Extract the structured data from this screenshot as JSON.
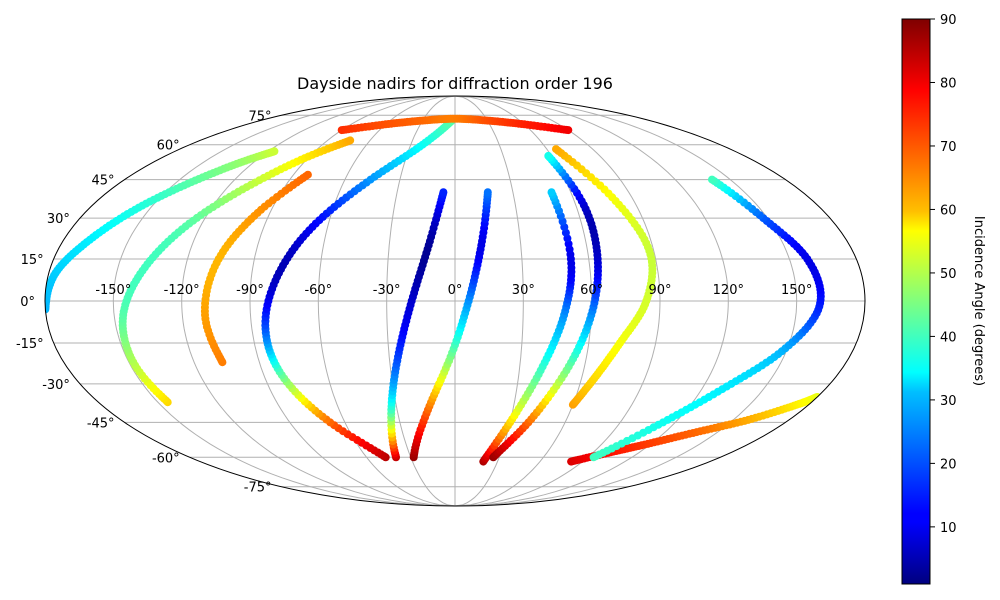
{
  "chart_data": {
    "type": "scatter",
    "projection": "mollweide",
    "title": "Dayside nadirs for diffraction order 196",
    "grid": true,
    "x_ticks": [
      "-150°",
      "-120°",
      "-90°",
      "-60°",
      "-30°",
      "0°",
      "30°",
      "60°",
      "90°",
      "120°",
      "150°"
    ],
    "y_ticks": [
      "-75°",
      "-60°",
      "-45°",
      "-30°",
      "-15°",
      "0°",
      "15°",
      "30°",
      "45°",
      "60°",
      "75°"
    ],
    "xlim": [
      -180,
      180
    ],
    "ylim": [
      -90,
      90
    ],
    "colorbar": {
      "label": "Incidence Angle (degrees)",
      "colormap": "jet",
      "range": [
        1,
        90
      ],
      "ticks": [
        "10",
        "20",
        "30",
        "40",
        "50",
        "60",
        "70",
        "80",
        "90"
      ]
    },
    "series": [
      {
        "track": 1,
        "lon": [
          -180,
          -177,
          -168,
          -156,
          -142,
          -128,
          -116
        ],
        "lat": [
          -3,
          10,
          22,
          34,
          44,
          52,
          57
        ],
        "incidence": [
          28,
          30,
          33,
          37,
          42,
          47,
          52
        ]
      },
      {
        "track": 2,
        "lon": [
          -145,
          -148,
          -146,
          -138,
          -126,
          -110,
          -92,
          -74
        ],
        "lat": [
          -37,
          -22,
          -5,
          12,
          28,
          42,
          54,
          62
        ],
        "incidence": [
          60,
          50,
          42,
          40,
          42,
          50,
          58,
          64
        ]
      },
      {
        "track": 3,
        "lon": [
          -107,
          -110,
          -106,
          -96,
          -82
        ],
        "lat": [
          -22,
          -5,
          15,
          32,
          47
        ],
        "incidence": [
          68,
          65,
          63,
          66,
          70
        ]
      },
      {
        "track": 4,
        "lon": [
          -47,
          -68,
          -81,
          -84,
          -78,
          -66,
          -46,
          -22,
          -3
        ],
        "lat": [
          -60,
          -45,
          -28,
          -10,
          10,
          28,
          45,
          60,
          72
        ],
        "incidence": [
          85,
          70,
          45,
          20,
          6,
          12,
          25,
          35,
          42
        ]
      },
      {
        "track": 5,
        "lon": [
          -40,
          -33,
          -26,
          -19,
          -12,
          -6
        ],
        "lat": [
          -60,
          -40,
          -20,
          0,
          20,
          40
        ],
        "incidence": [
          84,
          40,
          18,
          8,
          3,
          15
        ]
      },
      {
        "track": 6,
        "lon": [
          -28,
          -14,
          -2,
          6,
          12,
          17
        ],
        "lat": [
          -60,
          -40,
          -20,
          0,
          20,
          40
        ],
        "incidence": [
          88,
          70,
          45,
          25,
          10,
          22
        ]
      },
      {
        "track": 7,
        "lon": [
          20,
          30,
          40,
          48,
          52,
          50
        ],
        "lat": [
          -62,
          -45,
          -25,
          -5,
          15,
          40
        ],
        "incidence": [
          86,
          60,
          40,
          25,
          10,
          30
        ]
      },
      {
        "track": 8,
        "lon": [
          26,
          40,
          52,
          60,
          64,
          64,
          58
        ],
        "lat": [
          -60,
          -45,
          -25,
          -5,
          15,
          35,
          55
        ],
        "incidence": [
          88,
          70,
          45,
          25,
          8,
          8,
          36
        ]
      },
      {
        "track": 9,
        "lon": [
          60,
          66,
          74,
          84,
          88,
          80,
          66
        ],
        "lat": [
          -38,
          -28,
          -15,
          0,
          18,
          38,
          58
        ],
        "incidence": [
          65,
          60,
          56,
          53,
          52,
          56,
          64
        ]
      },
      {
        "track": 10,
        "lon": [
          82,
          100,
          118,
          138,
          158,
          174,
          180
        ],
        "lat": [
          -62,
          -58,
          -54,
          -49,
          -44,
          -38,
          -35
        ],
        "incidence": [
          82,
          78,
          74,
          70,
          64,
          58,
          55
        ]
      },
      {
        "track": 11,
        "lon": [
          94,
          112,
          130,
          148,
          160,
          158,
          148,
          140
        ],
        "lat": [
          -60,
          -46,
          -32,
          -18,
          -2,
          15,
          30,
          45
        ],
        "incidence": [
          40,
          36,
          33,
          28,
          15,
          10,
          20,
          40
        ]
      },
      {
        "track": 12,
        "lon": [
          -90,
          -60,
          -30,
          0,
          30,
          60,
          90
        ],
        "lat": [
          67,
          70,
          72,
          73,
          72,
          70,
          67
        ],
        "incidence": [
          75,
          72,
          70,
          68,
          72,
          76,
          80
        ]
      }
    ]
  }
}
